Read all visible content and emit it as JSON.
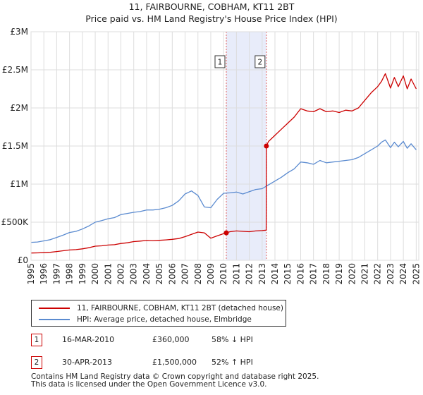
{
  "chart_data": {
    "type": "line",
    "title": "11, FAIRBOURNE, COBHAM, KT11 2BT",
    "subtitle": "Price paid vs. HM Land Registry's House Price Index (HPI)",
    "xlabel": "",
    "ylabel": "",
    "xlim": [
      1995.0,
      2025.2
    ],
    "ylim": [
      0,
      3000000
    ],
    "yticks": [
      0,
      500000,
      1000000,
      1500000,
      2000000,
      2500000,
      3000000
    ],
    "ytick_labels": [
      "£0",
      "£500K",
      "£1M",
      "£1.5M",
      "£2M",
      "£2.5M",
      "£3M"
    ],
    "xticks": [
      "1995",
      "1996",
      "1997",
      "1998",
      "1999",
      "2000",
      "2001",
      "2002",
      "2003",
      "2004",
      "2005",
      "2006",
      "2007",
      "2008",
      "2009",
      "2010",
      "2011",
      "2012",
      "2013",
      "2014",
      "2015",
      "2016",
      "2017",
      "2018",
      "2019",
      "2020",
      "2021",
      "2022",
      "2023",
      "2024",
      "2025"
    ],
    "grid": true,
    "shaded_region": [
      2010.21,
      2013.33
    ],
    "colors": {
      "property": "#cc0000",
      "hpi": "#5b8bd0",
      "shade": "#e8ecfa",
      "grid": "#dddddd",
      "marker_line": "#e06060"
    },
    "series": [
      {
        "name": "11, FAIRBOURNE, COBHAM, KT11 2BT (detached house)",
        "color": "#cc0000",
        "x": [
          1995.0,
          1995.5,
          1996.0,
          1996.5,
          1997.0,
          1997.5,
          1998.0,
          1998.5,
          1999.0,
          1999.5,
          2000.0,
          2000.5,
          2001.0,
          2001.5,
          2002.0,
          2002.5,
          2003.0,
          2003.5,
          2004.0,
          2004.5,
          2005.0,
          2005.5,
          2006.0,
          2006.5,
          2007.0,
          2007.5,
          2008.0,
          2008.5,
          2009.0,
          2009.5,
          2010.0,
          2010.21,
          2010.5,
          2011.0,
          2011.5,
          2012.0,
          2012.5,
          2013.0,
          2013.32,
          2013.33,
          2013.5,
          2014.0,
          2014.5,
          2015.0,
          2015.5,
          2016.0,
          2016.5,
          2017.0,
          2017.5,
          2018.0,
          2018.5,
          2019.0,
          2019.5,
          2020.0,
          2020.5,
          2021.0,
          2021.5,
          2022.0,
          2022.3,
          2022.6,
          2023.0,
          2023.3,
          2023.6,
          2024.0,
          2024.3,
          2024.6,
          2025.0
        ],
        "values": [
          95000,
          97000,
          100000,
          105000,
          115000,
          125000,
          135000,
          140000,
          150000,
          165000,
          185000,
          190000,
          200000,
          205000,
          220000,
          230000,
          245000,
          252000,
          260000,
          258000,
          262000,
          268000,
          275000,
          285000,
          310000,
          340000,
          370000,
          360000,
          290000,
          320000,
          350000,
          360000,
          375000,
          385000,
          380000,
          375000,
          385000,
          390000,
          395000,
          1500000,
          1560000,
          1640000,
          1720000,
          1800000,
          1880000,
          1990000,
          1960000,
          1950000,
          1990000,
          1950000,
          1960000,
          1940000,
          1970000,
          1960000,
          2000000,
          2100000,
          2200000,
          2280000,
          2350000,
          2450000,
          2260000,
          2400000,
          2280000,
          2420000,
          2250000,
          2380000,
          2250000
        ]
      },
      {
        "name": "HPI: Average price, detached house, Elmbridge",
        "color": "#5b8bd0",
        "x": [
          1995.0,
          1995.5,
          1996.0,
          1996.5,
          1997.0,
          1997.5,
          1998.0,
          1998.5,
          1999.0,
          1999.5,
          2000.0,
          2000.5,
          2001.0,
          2001.5,
          2002.0,
          2002.5,
          2003.0,
          2003.5,
          2004.0,
          2004.5,
          2005.0,
          2005.5,
          2006.0,
          2006.5,
          2007.0,
          2007.5,
          2008.0,
          2008.5,
          2009.0,
          2009.5,
          2010.0,
          2010.5,
          2011.0,
          2011.5,
          2012.0,
          2012.5,
          2013.0,
          2013.5,
          2014.0,
          2014.5,
          2015.0,
          2015.5,
          2016.0,
          2016.5,
          2017.0,
          2017.5,
          2018.0,
          2018.5,
          2019.0,
          2019.5,
          2020.0,
          2020.5,
          2021.0,
          2021.5,
          2022.0,
          2022.3,
          2022.6,
          2023.0,
          2023.3,
          2023.6,
          2024.0,
          2024.3,
          2024.6,
          2025.0
        ],
        "values": [
          235000,
          240000,
          255000,
          270000,
          300000,
          330000,
          365000,
          380000,
          410000,
          450000,
          500000,
          520000,
          545000,
          560000,
          600000,
          615000,
          630000,
          640000,
          660000,
          660000,
          670000,
          690000,
          720000,
          780000,
          870000,
          910000,
          850000,
          700000,
          690000,
          800000,
          880000,
          885000,
          895000,
          870000,
          900000,
          930000,
          940000,
          990000,
          1040000,
          1090000,
          1150000,
          1200000,
          1290000,
          1280000,
          1260000,
          1310000,
          1280000,
          1290000,
          1300000,
          1310000,
          1320000,
          1350000,
          1400000,
          1450000,
          1500000,
          1550000,
          1580000,
          1480000,
          1550000,
          1490000,
          1560000,
          1470000,
          1530000,
          1450000
        ]
      }
    ],
    "annotations": [
      {
        "label": "1",
        "x": 2010.21,
        "value": 360000
      },
      {
        "label": "2",
        "x": 2013.33,
        "value": 1500000
      }
    ]
  },
  "legend": {
    "property_label": "11, FAIRBOURNE, COBHAM, KT11 2BT (detached house)",
    "hpi_label": "HPI: Average price, detached house, Elmbridge"
  },
  "transactions": [
    {
      "num": "1",
      "date": "16-MAR-2010",
      "price": "£360,000",
      "hpi": "58% ↓ HPI"
    },
    {
      "num": "2",
      "date": "30-APR-2013",
      "price": "£1,500,000",
      "hpi": "52% ↑ HPI"
    }
  ],
  "footer": {
    "line1": "Contains HM Land Registry data © Crown copyright and database right 2025.",
    "line2": "This data is licensed under the Open Government Licence v3.0."
  }
}
